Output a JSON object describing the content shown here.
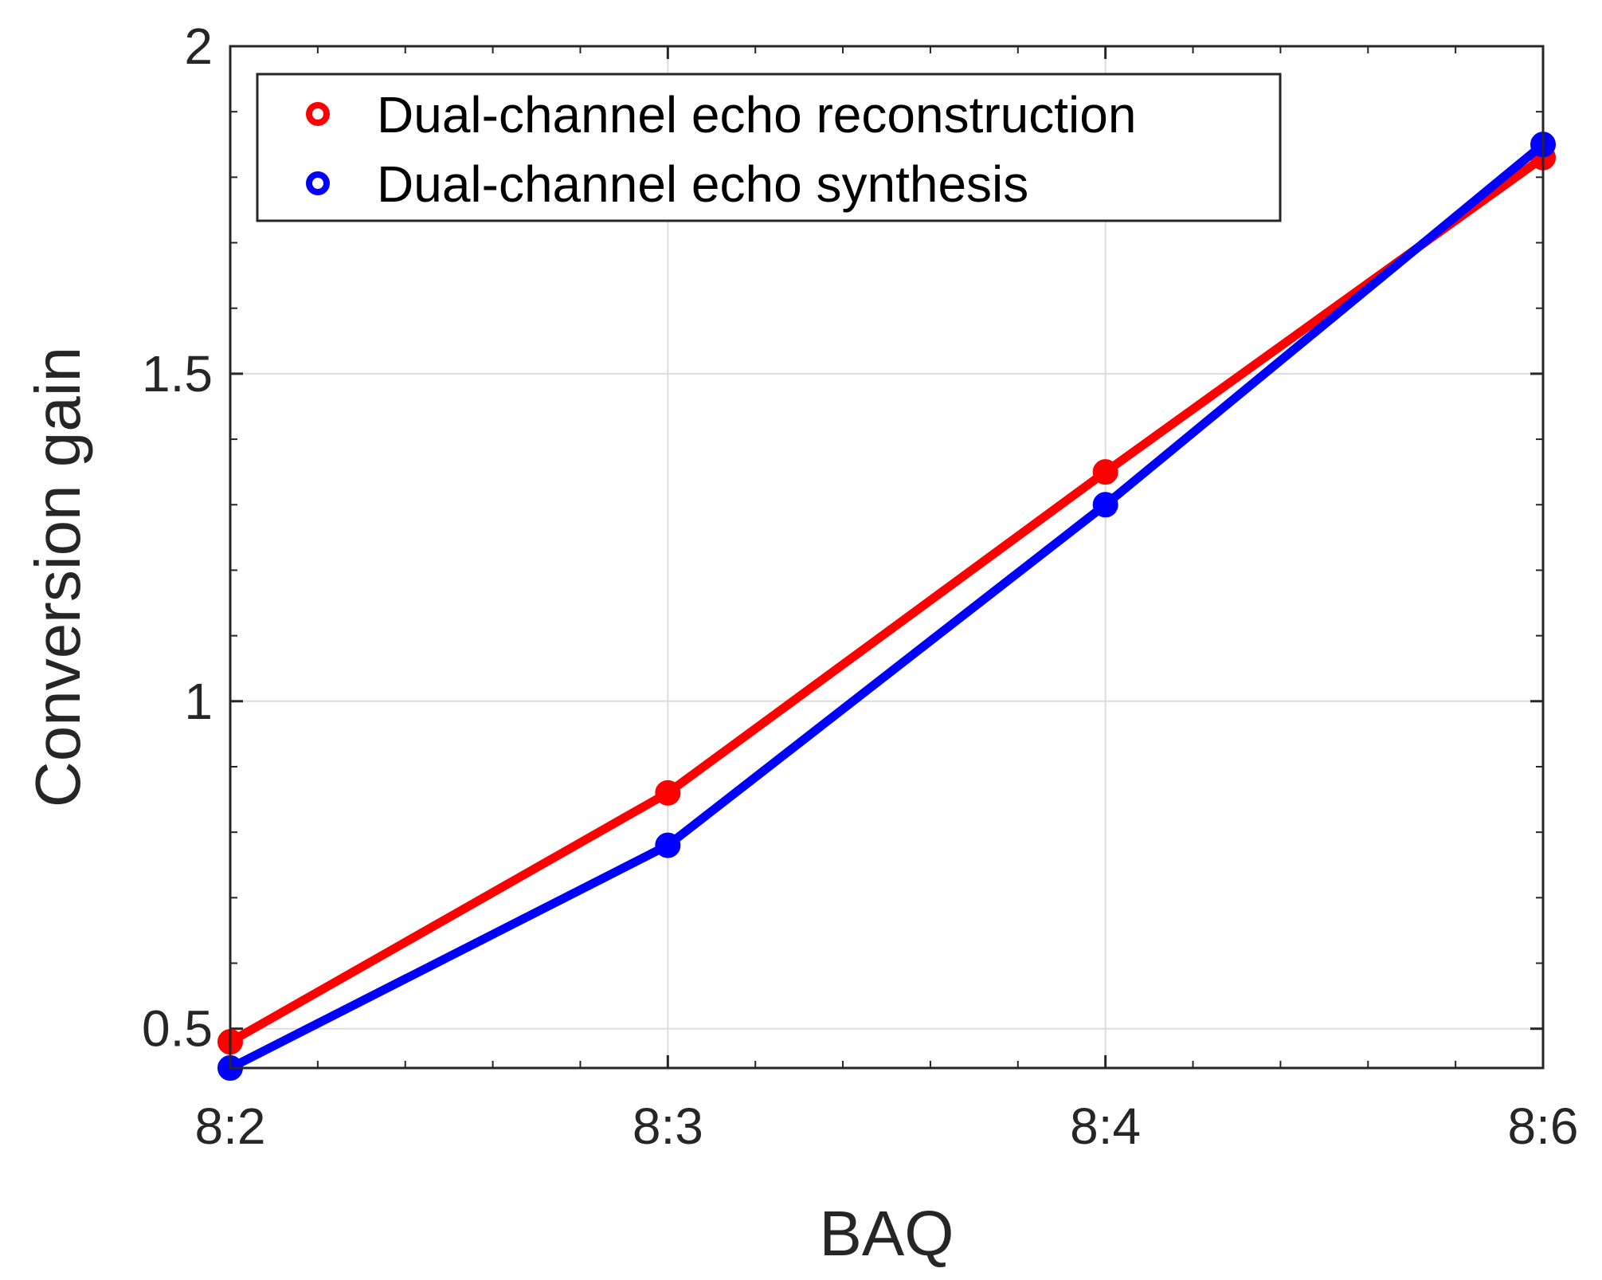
{
  "chart_data": {
    "type": "line",
    "title": "",
    "xlabel": "BAQ",
    "ylabel": "Conversion gain",
    "categories": [
      "8:2",
      "8:3",
      "8:4",
      "8:6"
    ],
    "ylim": [
      0.44,
      2.0
    ],
    "yticks": [
      0.5,
      1,
      1.5,
      2
    ],
    "ytick_labels": [
      "0.5",
      "1",
      "1.5",
      "2"
    ],
    "grid": true,
    "legend_position": "top-left",
    "series": [
      {
        "name": "Dual-channel echo reconstruction",
        "color": "#ff0000",
        "values": [
          0.48,
          0.86,
          1.35,
          1.83
        ]
      },
      {
        "name": "Dual-channel echo synthesis",
        "color": "#0000ff",
        "values": [
          0.44,
          0.78,
          1.3,
          1.85
        ]
      }
    ]
  }
}
